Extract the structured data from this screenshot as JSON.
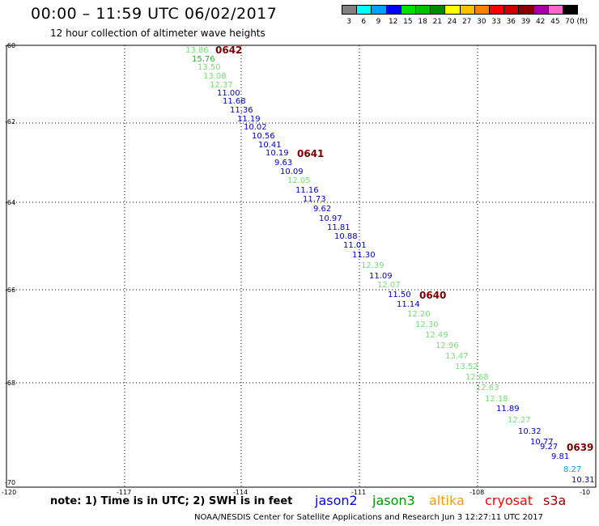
{
  "header": {
    "title": "00:00 – 11:59 UTC 06/02/2017",
    "subtitle": "12 hour collection of altimeter wave heights"
  },
  "legend": {
    "labels": [
      "3",
      "6",
      "9",
      "12",
      "15",
      "18",
      "21",
      "24",
      "27",
      "30",
      "33",
      "36",
      "39",
      "42",
      "45",
      "70 (ft)"
    ],
    "colors": [
      "#808080",
      "#00ffff",
      "#00a0ff",
      "#0000ff",
      "#00e000",
      "#00c000",
      "#008800",
      "#ffff00",
      "#ffc000",
      "#ff8000",
      "#ff0000",
      "#cc0000",
      "#880000",
      "#aa00aa",
      "#ff66cc",
      "#000000"
    ]
  },
  "map": {
    "lat_labels": [
      "-60",
      "-62",
      "-64",
      "-66",
      "-68",
      "-70"
    ],
    "lon_labels": [
      "-120",
      "-117",
      "-114",
      "-111",
      "-108",
      "-10"
    ],
    "observations": [
      {
        "v": "13.86",
        "c": "#77dd77"
      },
      {
        "v": "15.76",
        "c": "#33aa33"
      },
      {
        "v": "13.50",
        "c": "#77dd77"
      },
      {
        "v": "13.08",
        "c": "#77dd77"
      },
      {
        "v": "12.37",
        "c": "#77dd77"
      },
      {
        "v": "11.00",
        "c": "#0000cc"
      },
      {
        "v": "11.68",
        "c": "#0000cc"
      },
      {
        "v": "11.36",
        "c": "#0000cc"
      },
      {
        "v": "11.19",
        "c": "#0000cc"
      },
      {
        "v": "10.02",
        "c": "#0000cc"
      },
      {
        "v": "10.56",
        "c": "#0000cc"
      },
      {
        "v": "10.41",
        "c": "#0000cc"
      },
      {
        "v": "10.19",
        "c": "#0000cc"
      },
      {
        "v": "9.63",
        "c": "#0000cc"
      },
      {
        "v": "10.09",
        "c": "#0000cc"
      },
      {
        "v": "12.05",
        "c": "#77dd77"
      },
      {
        "v": "11.16",
        "c": "#0000cc"
      },
      {
        "v": "11.73",
        "c": "#0000cc"
      },
      {
        "v": "9.62",
        "c": "#0000cc"
      },
      {
        "v": "10.97",
        "c": "#0000cc"
      },
      {
        "v": "11.81",
        "c": "#0000cc"
      },
      {
        "v": "10.88",
        "c": "#0000cc"
      },
      {
        "v": "11.01",
        "c": "#0000cc"
      },
      {
        "v": "11.30",
        "c": "#0000cc"
      },
      {
        "v": "12.39",
        "c": "#77dd77"
      },
      {
        "v": "11.09",
        "c": "#0000cc"
      },
      {
        "v": "12.07",
        "c": "#77dd77"
      },
      {
        "v": "11.50",
        "c": "#0000cc"
      },
      {
        "v": "11.14",
        "c": "#0000cc"
      },
      {
        "v": "12.20",
        "c": "#77dd77"
      },
      {
        "v": "12.30",
        "c": "#77dd77"
      },
      {
        "v": "12.49",
        "c": "#77dd77"
      },
      {
        "v": "12.96",
        "c": "#77dd77"
      },
      {
        "v": "13.47",
        "c": "#77dd77"
      },
      {
        "v": "13.52",
        "c": "#77dd77"
      },
      {
        "v": "12.68",
        "c": "#77dd77"
      },
      {
        "v": "12.63",
        "c": "#77dd77"
      },
      {
        "v": "12.18",
        "c": "#77dd77"
      },
      {
        "v": "11.89",
        "c": "#0000cc"
      },
      {
        "v": "12.27",
        "c": "#77dd77"
      },
      {
        "v": "10.32",
        "c": "#0000cc"
      },
      {
        "v": "10.77",
        "c": "#0000cc"
      },
      {
        "v": "9.27",
        "c": "#0000cc"
      },
      {
        "v": "9.81",
        "c": "#0000cc"
      },
      {
        "v": "8.27",
        "c": "#00a0ff"
      },
      {
        "v": "10.31",
        "c": "#0000cc"
      }
    ],
    "time_labels": [
      "0642",
      "0641",
      "0640",
      "0639"
    ]
  },
  "footer": {
    "note": "note:  1) Time is in UTC;  2) SWH is in feet",
    "credit": "NOAA/NESDIS Center for Satellite Applications and Research    Jun  3 12:27:11 UTC 2017",
    "satellites": [
      {
        "name": "jason2",
        "color": "#0000ff"
      },
      {
        "name": "jason3",
        "color": "#009900"
      },
      {
        "name": "altika",
        "color": "#ff9900"
      },
      {
        "name": "cryosat",
        "color": "#ff0000"
      },
      {
        "name": "s3a",
        "color": "#990000"
      }
    ]
  }
}
